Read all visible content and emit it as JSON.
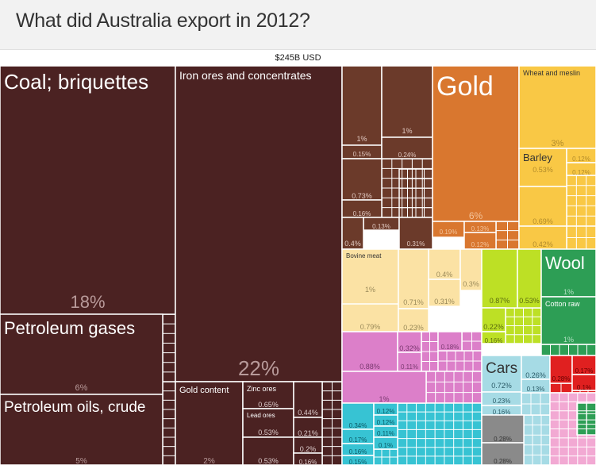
{
  "page": {
    "title": "What did Australia export in 2012?",
    "total": "$245B USD"
  },
  "colors": {
    "mineral": "#4b2222",
    "metal_brown": "#6b3a2a",
    "gold": "#d9772f",
    "cereal": "#f9c845",
    "animal": "#fbe2a4",
    "chem": "#dc7fc9",
    "textile": "#2d9e55",
    "veg": "#bde025",
    "transport": "#a6dbe5",
    "machinery": "#37c3d3",
    "misc_gray": "#8a8a8a",
    "misc_red": "#e02020",
    "misc_pink": "#f2a9d3"
  },
  "chart_data": {
    "type": "treemap",
    "title": "What did Australia export in 2012?",
    "total": "$245B USD",
    "items": [
      {
        "name": "Coal; briquettes",
        "share": "18%",
        "category": "mineral"
      },
      {
        "name": "Petroleum gases",
        "share": "6%",
        "category": "mineral"
      },
      {
        "name": "Petroleum oils, crude",
        "share": "5%",
        "category": "mineral"
      },
      {
        "name": "Iron ores and concentrates",
        "share": "22%",
        "category": "mineral"
      },
      {
        "name": "Gold content",
        "share": "2%",
        "category": "mineral"
      },
      {
        "name": "Zinc ores",
        "share": "0.65%",
        "category": "mineral"
      },
      {
        "name": "Lead ores",
        "share": "0.53%",
        "category": "mineral"
      },
      {
        "name": "",
        "share": "0.53%",
        "category": "mineral"
      },
      {
        "name": "",
        "share": "0.44%",
        "category": "mineral"
      },
      {
        "name": "",
        "share": "0.21%",
        "category": "mineral"
      },
      {
        "name": "",
        "share": "0.2%",
        "category": "mineral"
      },
      {
        "name": "",
        "share": "0.16%",
        "category": "mineral"
      },
      {
        "name": "",
        "share": "1%",
        "category": "metal_brown"
      },
      {
        "name": "",
        "share": "1%",
        "category": "metal_brown"
      },
      {
        "name": "",
        "share": "0.15%",
        "category": "metal_brown"
      },
      {
        "name": "",
        "share": "0.24%",
        "category": "metal_brown"
      },
      {
        "name": "",
        "share": "0.73%",
        "category": "metal_brown"
      },
      {
        "name": "",
        "share": "0.16%",
        "category": "metal_brown"
      },
      {
        "name": "",
        "share": "0.13%",
        "category": "metal_brown"
      },
      {
        "name": "",
        "share": "0.4%",
        "category": "metal_brown"
      },
      {
        "name": "",
        "share": "0.31%",
        "category": "metal_brown"
      },
      {
        "name": "Gold",
        "share": "6%",
        "category": "gold"
      },
      {
        "name": "",
        "share": "0.19%",
        "category": "gold"
      },
      {
        "name": "",
        "share": "0.13%",
        "category": "gold"
      },
      {
        "name": "",
        "share": "0.12%",
        "category": "gold"
      },
      {
        "name": "Wheat and meslin",
        "share": "3%",
        "category": "cereal"
      },
      {
        "name": "Barley",
        "share": "0.53%",
        "category": "cereal"
      },
      {
        "name": "",
        "share": "0.12%",
        "category": "cereal"
      },
      {
        "name": "",
        "share": "0.12%",
        "category": "cereal"
      },
      {
        "name": "",
        "share": "0.69%",
        "category": "cereal"
      },
      {
        "name": "",
        "share": "0.42%",
        "category": "cereal"
      },
      {
        "name": "Bovine meat",
        "share": "1%",
        "category": "animal"
      },
      {
        "name": "",
        "share": "0.79%",
        "category": "animal"
      },
      {
        "name": "",
        "share": "0.71%",
        "category": "animal"
      },
      {
        "name": "",
        "share": "0.23%",
        "category": "animal"
      },
      {
        "name": "",
        "share": "0.4%",
        "category": "animal"
      },
      {
        "name": "",
        "share": "0.3%",
        "category": "animal"
      },
      {
        "name": "",
        "share": "0.31%",
        "category": "animal"
      },
      {
        "name": "",
        "share": "0.87%",
        "category": "veg"
      },
      {
        "name": "",
        "share": "0.53%",
        "category": "veg"
      },
      {
        "name": "",
        "share": "0.22%",
        "category": "veg"
      },
      {
        "name": "",
        "share": "0.16%",
        "category": "veg"
      },
      {
        "name": "Wool",
        "share": "1%",
        "category": "textile"
      },
      {
        "name": "Cotton raw",
        "share": "1%",
        "category": "textile"
      },
      {
        "name": "",
        "share": "0.88%",
        "category": "chem"
      },
      {
        "name": "",
        "share": "0.32%",
        "category": "chem"
      },
      {
        "name": "",
        "share": "0.11%",
        "category": "chem"
      },
      {
        "name": "",
        "share": "0.18%",
        "category": "chem"
      },
      {
        "name": "",
        "share": "1%",
        "category": "chem"
      },
      {
        "name": "Cars",
        "share": "0.72%",
        "category": "transport"
      },
      {
        "name": "",
        "share": "0.26%",
        "category": "transport"
      },
      {
        "name": "",
        "share": "0.13%",
        "category": "transport"
      },
      {
        "name": "",
        "share": "0.23%",
        "category": "transport"
      },
      {
        "name": "",
        "share": "0.16%",
        "category": "transport"
      },
      {
        "name": "",
        "share": "0.34%",
        "category": "machinery"
      },
      {
        "name": "",
        "share": "0.17%",
        "category": "machinery"
      },
      {
        "name": "",
        "share": "0.16%",
        "category": "machinery"
      },
      {
        "name": "",
        "share": "0.15%",
        "category": "machinery"
      },
      {
        "name": "",
        "share": "0.12%",
        "category": "machinery"
      },
      {
        "name": "",
        "share": "0.12%",
        "category": "machinery"
      },
      {
        "name": "",
        "share": "0.11%",
        "category": "machinery"
      },
      {
        "name": "",
        "share": "0.1%",
        "category": "machinery"
      },
      {
        "name": "",
        "share": "0.28%",
        "category": "misc_gray"
      },
      {
        "name": "",
        "share": "0.28%",
        "category": "misc_gray"
      },
      {
        "name": "",
        "share": "0.28%",
        "category": "misc_red"
      },
      {
        "name": "",
        "share": "0.17%",
        "category": "misc_red"
      },
      {
        "name": "",
        "share": "0.1%",
        "category": "misc_red"
      }
    ]
  }
}
